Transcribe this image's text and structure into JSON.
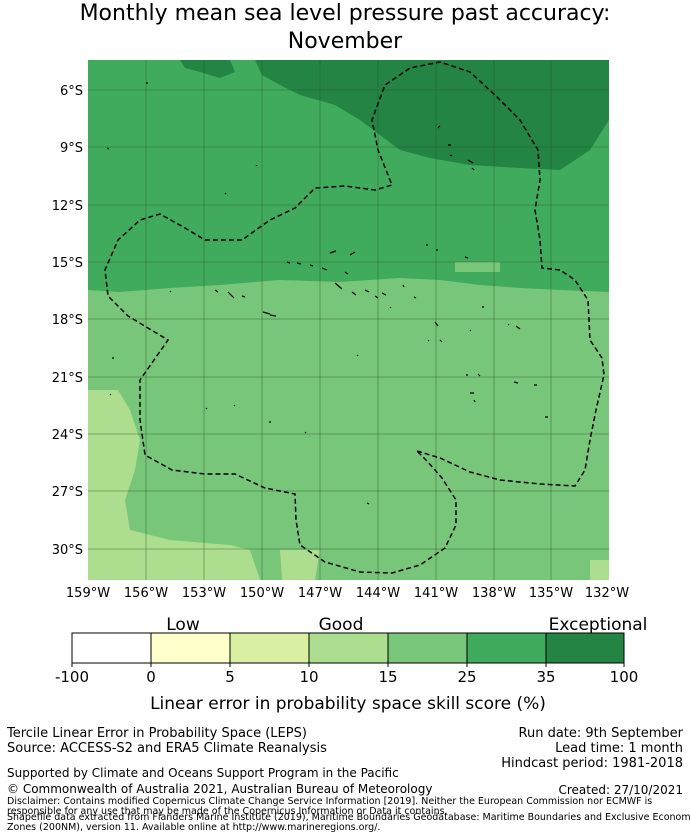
{
  "title_line1": "Monthly mean sea level pressure past accuracy:",
  "title_line2": "November",
  "lat_labels": [
    "6°S",
    "9°S",
    "12°S",
    "15°S",
    "18°S",
    "21°S",
    "24°S",
    "27°S",
    "30°S"
  ],
  "lon_labels": [
    "159°W",
    "156°W",
    "153°W",
    "150°W",
    "147°W",
    "144°W",
    "141°W",
    "138°W",
    "135°W",
    "132°W"
  ],
  "colorbar": {
    "category_labels": [
      "Low",
      "Good",
      "Exceptional"
    ],
    "tick_labels": [
      "-100",
      "0",
      "5",
      "10",
      "15",
      "25",
      "35",
      "100"
    ],
    "colors": [
      "#ffffff",
      "#ffffcc",
      "#d9f0a3",
      "#addd8e",
      "#78c679",
      "#41ab5d",
      "#238443"
    ],
    "xlabel": "Linear error in probability space skill score (%)"
  },
  "footer": {
    "method": "Tercile Linear Error in Probability Space (LEPS)",
    "source": "Source: ACCESS-S2 and ERA5 Climate Reanalysis",
    "support": "Supported by Climate and Oceans Support Program in the Pacific",
    "copyright": "© Commonwealth of Australia 2021, Australian Bureau of Meteorology",
    "run_date": "Run date: 9th September",
    "lead_time": "Lead time: 1 month",
    "hindcast": "Hindcast period: 1981-2018",
    "created": "Created: 27/10/2021",
    "disclaimer_1": "Disclaimer: Contains modified Copernicus Climate Change Service Information [2019]. Neither the European Commission nor ECMWF is",
    "disclaimer_2": "responsible for any use that may be made of the Copernicus Information or Data it contains.",
    "disclaimer_3": "Shapefile data extracted from Flanders Marine Institute (2019), Maritime Boundaries Geodatabase: Maritime Boundaries and Exclusive Economic",
    "disclaimer_4": "Zones (200NM), version 11. Available online at http://www.marineregions.org/."
  }
}
